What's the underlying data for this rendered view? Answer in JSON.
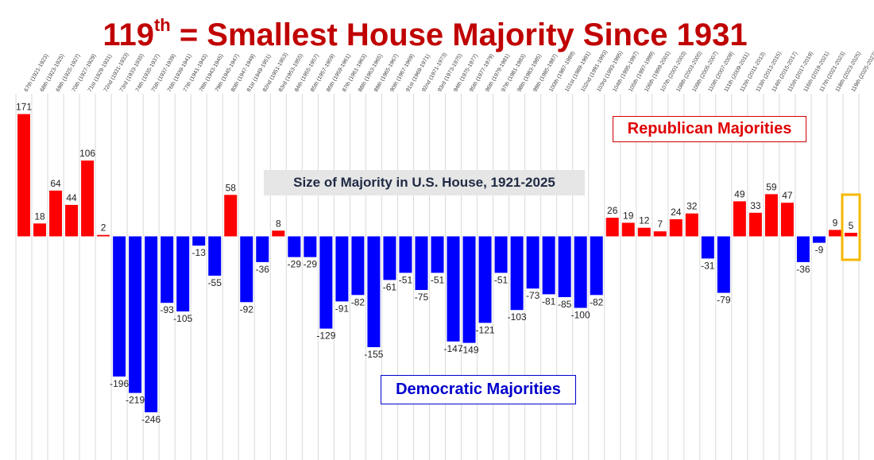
{
  "title": {
    "prefix": "119",
    "sup": "th",
    "rest": " = Smallest House Majority Since 1931"
  },
  "labels": {
    "republican": "Republican Majorities",
    "democratic": "Democratic Majorities",
    "subtitle": "Size of Majority in U.S. House, 1921-2025"
  },
  "colors": {
    "republican": "#ff0000",
    "democratic": "#0000ff",
    "highlight": "#f5b800",
    "title": "#c00000"
  },
  "chart_data": {
    "type": "bar",
    "grid": "vertical lines between congresses",
    "categories": [
      "67th (1921-1923)",
      "68th (1923-1925)",
      "69th (1925-1927)",
      "70th (1927-1929)",
      "71st (1929-1931)",
      "72nd (1931-1933)",
      "73rd (1933-1935)",
      "74th (1935-1937)",
      "75th (1937-1939)",
      "76th (1939-1941)",
      "77th (1941-1943)",
      "78th (1943-1945)",
      "79th (1945-1947)",
      "80th (1947-1949)",
      "81st (1949-1951)",
      "82nd (1951-1953)",
      "83rd (1953-1955)",
      "84th (1955-1957)",
      "85th (1957-1959)",
      "86th (1959-1961)",
      "87th (1961-1963)",
      "88th (1963-1965)",
      "89th (1965-1967)",
      "90th (1967-1969)",
      "91st (1969-1971)",
      "92nd (1971-1973)",
      "93rd (1973-1975)",
      "94th (1975-1977)",
      "95th (1977-1979)",
      "96th (1979-1981)",
      "97th (1981-1983)",
      "98th (1983-1985)",
      "99th (1985-1987)",
      "100th (1987-1989)",
      "101st (1989-1991)",
      "102nd (1991-1993)",
      "103rd (1993-1995)",
      "104th (1995-1997)",
      "105th (1997-1999)",
      "106th (1999-2001)",
      "107th (2001-2003)",
      "108th (2003-2005)",
      "109th (2005-2007)",
      "110th (2007-2009)",
      "111th (2009-2011)",
      "112th (2011-2013)",
      "113th (2013-2015)",
      "114th (2015-2017)",
      "115th (2017-2019)",
      "116th (2019-2021)",
      "117th (2021-2023)",
      "118th (2023-2025)",
      "119th (2025-2027)"
    ],
    "values": [
      171,
      18,
      64,
      44,
      106,
      2,
      -196,
      -219,
      -246,
      -93,
      -105,
      -13,
      -55,
      58,
      -92,
      -36,
      8,
      -29,
      -29,
      -129,
      -91,
      -82,
      -155,
      -61,
      -51,
      -75,
      -51,
      -147,
      -149,
      -121,
      -51,
      -103,
      -73,
      -81,
      -85,
      -100,
      -82,
      26,
      19,
      12,
      7,
      24,
      32,
      -31,
      -79,
      49,
      33,
      59,
      47,
      -36,
      -9,
      9,
      5
    ],
    "data_labels": [
      "171",
      "18",
      "64",
      "44",
      "106",
      "2",
      "-196",
      "-219",
      "-246",
      "-93",
      "-105",
      "-13",
      "-55",
      "58",
      "-92",
      "-36",
      "8",
      "-29",
      "-29",
      "-129",
      "-91",
      "-82",
      "-155",
      "-61",
      "-51",
      "-75",
      "-51",
      "-147",
      "-149",
      "-121",
      "-51",
      "-103",
      "-73",
      "-81",
      "-85",
      "-100",
      "-82",
      "26",
      "19",
      "12",
      "7",
      "24",
      "32",
      "-31",
      "-79",
      "49",
      "33",
      "59",
      "47",
      "-36",
      "-9",
      "9",
      "5"
    ],
    "highlight_index": 52
  }
}
